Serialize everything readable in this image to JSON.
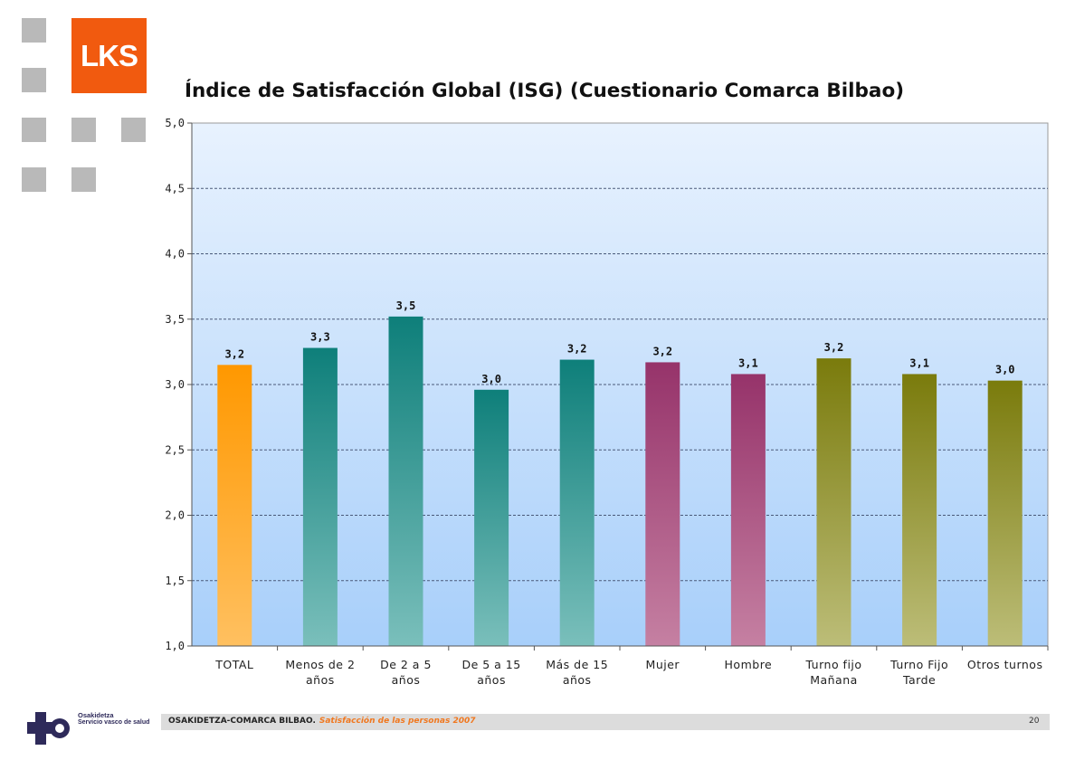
{
  "brand": {
    "logo_text": "LKS",
    "accent": "#f15a0f"
  },
  "footer": {
    "org": "OSAKIDETZA-COMARCA BILBAO.",
    "subtitle": "Satisfacción de las personas 2007",
    "page": "20",
    "partner_name": "Osakidetza",
    "partner_tagline": "Servicio vasco de salud"
  },
  "chart_data": {
    "type": "bar",
    "title": "Índice de Satisfacción Global (ISG) (Cuestionario Comarca Bilbao)",
    "xlabel": "",
    "ylabel": "",
    "ylim": [
      1.0,
      5.0
    ],
    "yticks": [
      "1,0",
      "1,5",
      "2,0",
      "2,5",
      "3,0",
      "3,5",
      "4,0",
      "4,5",
      "5,0"
    ],
    "grid": true,
    "categories": [
      [
        "TOTAL"
      ],
      [
        "Menos de  2",
        "años"
      ],
      [
        "De 2 a 5",
        "años"
      ],
      [
        "De 5 a 15",
        "años"
      ],
      [
        "Más de 15",
        "años"
      ],
      [
        "Mujer"
      ],
      [
        "Hombre"
      ],
      [
        "Turno fijo",
        "Mañana"
      ],
      [
        "Turno Fijo",
        "Tarde"
      ],
      [
        "Otros turnos"
      ]
    ],
    "values": [
      3.15,
      3.28,
      3.52,
      2.96,
      3.19,
      3.17,
      3.08,
      3.2,
      3.08,
      3.03
    ],
    "labels": [
      "3,2",
      "3,3",
      "3,5",
      "3,0",
      "3,2",
      "3,2",
      "3,1",
      "3,2",
      "3,1",
      "3,0"
    ],
    "colors": [
      [
        "#ffc060",
        "#ff9800"
      ],
      [
        "#7abfbb",
        "#0e7f7a"
      ],
      [
        "#7abfbb",
        "#0e7f7a"
      ],
      [
        "#7abfbb",
        "#0e7f7a"
      ],
      [
        "#7abfbb",
        "#0e7f7a"
      ],
      [
        "#c580a2",
        "#96336a"
      ],
      [
        "#c580a2",
        "#96336a"
      ],
      [
        "#bcbd78",
        "#7a7b0c"
      ],
      [
        "#bcbd78",
        "#7a7b0c"
      ],
      [
        "#bcbd78",
        "#7a7b0c"
      ]
    ]
  }
}
